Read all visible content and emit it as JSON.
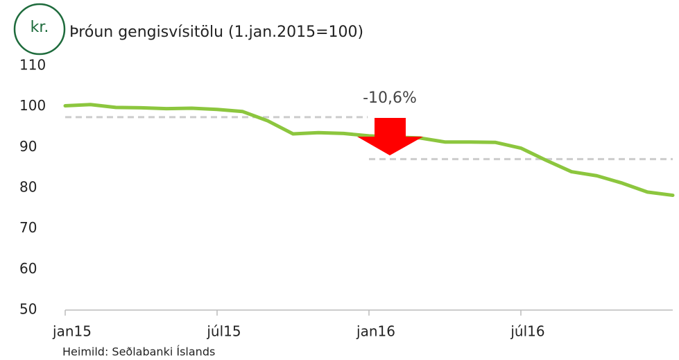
{
  "chart_data": {
    "type": "line",
    "title": "Þróun gengisvísitölu (1.jan.2015=100)",
    "icon_text": "kr.",
    "source": "Heimild: Seðlabanki Íslands",
    "annotation": "-10,6%",
    "categories": [
      "jan15",
      null,
      null,
      null,
      null,
      null,
      "júl15",
      null,
      null,
      null,
      null,
      null,
      "jan16",
      null,
      null,
      null,
      null,
      null,
      "júl16",
      null,
      null,
      null,
      null,
      null,
      null
    ],
    "values": [
      100.2,
      100.5,
      99.8,
      99.7,
      99.5,
      99.6,
      99.3,
      98.8,
      96.5,
      93.3,
      93.6,
      93.4,
      92.8,
      92.5,
      92.3,
      91.3,
      91.3,
      91.2,
      89.8,
      86.8,
      84.0,
      83.0,
      81.2,
      79.0,
      78.2
    ],
    "color": "#8cc63e",
    "reference_lines": [
      97.4,
      87.1
    ],
    "ylim": [
      50,
      110
    ],
    "yticks": [
      50,
      60,
      70,
      80,
      90,
      100,
      110
    ]
  }
}
